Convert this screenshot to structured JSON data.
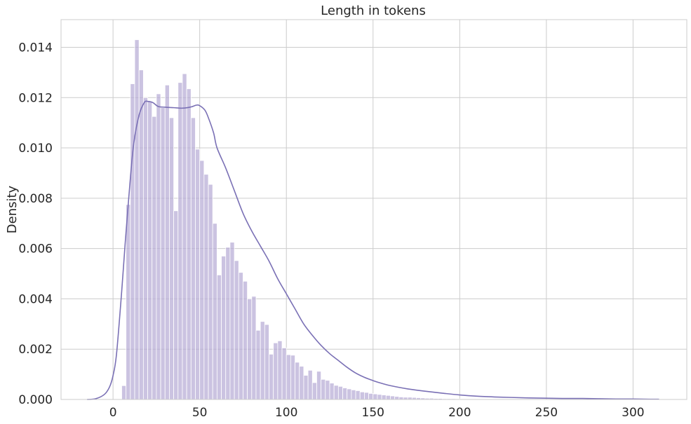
{
  "chart_data": {
    "type": "bar",
    "title": "Length in tokens",
    "xlabel": "",
    "ylabel": "Density",
    "xlim": [
      -30,
      331
    ],
    "ylim": [
      0,
      0.0151
    ],
    "xticks": [
      0,
      50,
      100,
      150,
      200,
      250,
      300
    ],
    "yticks": [
      0.0,
      0.002,
      0.004,
      0.006,
      0.008,
      0.01,
      0.012,
      0.014
    ],
    "ytick_labels": [
      "0.000",
      "0.002",
      "0.004",
      "0.006",
      "0.008",
      "0.010",
      "0.012",
      "0.014"
    ],
    "grid": true,
    "bin_start": 5,
    "bin_width": 2.5,
    "bar_color": "#b7acd6",
    "kde_color": "#7a70b5",
    "histogram": [
      0.00055,
      0.00775,
      0.01255,
      0.0143,
      0.0131,
      0.012,
      0.01185,
      0.01125,
      0.01215,
      0.0116,
      0.0125,
      0.0112,
      0.0075,
      0.0126,
      0.01295,
      0.01235,
      0.0112,
      0.00995,
      0.0095,
      0.00895,
      0.00855,
      0.007,
      0.00495,
      0.0057,
      0.00605,
      0.00625,
      0.00552,
      0.00505,
      0.0047,
      0.004,
      0.0041,
      0.00275,
      0.0031,
      0.00298,
      0.0018,
      0.00225,
      0.00233,
      0.00205,
      0.00178,
      0.00176,
      0.00148,
      0.00132,
      0.00096,
      0.00116,
      0.00067,
      0.00112,
      0.0008,
      0.00076,
      0.00065,
      0.00056,
      0.00052,
      0.00046,
      0.00042,
      0.00038,
      0.00035,
      0.0003,
      0.00028,
      0.00024,
      0.00022,
      0.0002,
      0.00018,
      0.00016,
      0.00014,
      0.00012,
      0.0001,
      9e-05,
      9e-05,
      8e-05,
      7e-05,
      6e-05,
      5e-05,
      5e-05,
      4e-05,
      4e-05,
      3e-05,
      3e-05,
      3e-05,
      2e-05,
      2e-05,
      2e-05,
      2e-05,
      1e-05,
      1e-05,
      1e-05,
      1e-05,
      1e-05,
      1e-05,
      1e-05
    ],
    "kde": {
      "x": [
        -15,
        -10,
        -5,
        -2,
        0,
        2,
        5,
        7,
        10,
        12,
        15,
        18,
        20,
        23,
        26,
        30,
        35,
        40,
        45,
        48,
        50,
        53,
        55,
        58,
        60,
        65,
        70,
        75,
        80,
        85,
        90,
        95,
        100,
        105,
        110,
        115,
        120,
        125,
        130,
        135,
        140,
        145,
        150,
        155,
        160,
        170,
        180,
        190,
        200,
        210,
        220,
        230,
        240,
        250,
        260,
        270,
        280,
        290,
        300,
        310,
        315
      ],
      "y": [
        0.0,
        3e-05,
        0.0002,
        0.0005,
        0.00095,
        0.0018,
        0.0043,
        0.0062,
        0.0088,
        0.0102,
        0.0113,
        0.0118,
        0.01185,
        0.0118,
        0.01165,
        0.01162,
        0.0116,
        0.01158,
        0.01163,
        0.0117,
        0.01168,
        0.0115,
        0.0112,
        0.0106,
        0.01,
        0.0092,
        0.0083,
        0.0074,
        0.0067,
        0.0061,
        0.0055,
        0.0048,
        0.0042,
        0.0036,
        0.003,
        0.00255,
        0.00215,
        0.00182,
        0.00155,
        0.00128,
        0.00105,
        0.00088,
        0.00075,
        0.00064,
        0.00055,
        0.00042,
        0.00033,
        0.00025,
        0.00018,
        0.00013,
        0.0001,
        8e-05,
        6e-05,
        5e-05,
        4e-05,
        4e-05,
        3e-05,
        2e-05,
        2e-05,
        1e-05,
        1e-05
      ]
    }
  }
}
